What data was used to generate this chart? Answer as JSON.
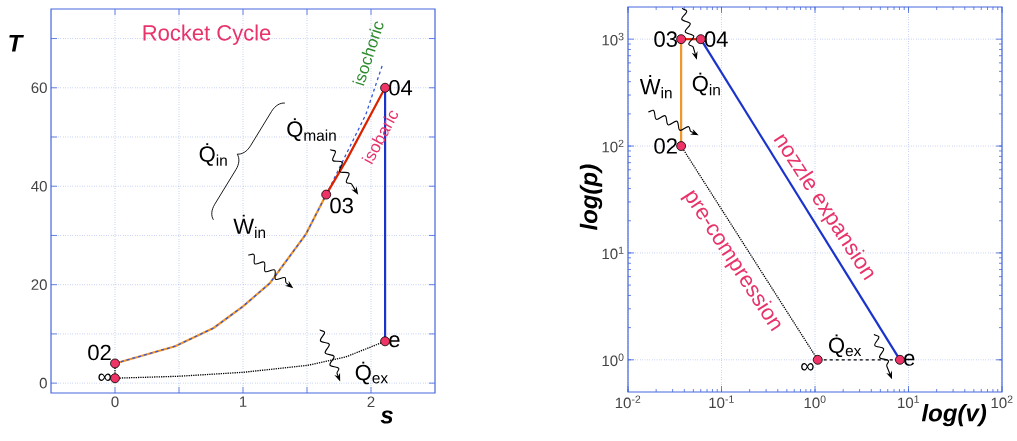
{
  "chart_data": [
    {
      "type": "line",
      "title": "Rocket Cycle",
      "xlabel": "s",
      "ylabel": "T",
      "xlim": [
        -0.5,
        2.5
      ],
      "ylim": [
        -2,
        76
      ],
      "xticks": [
        0,
        {
          "value": 0.5,
          "label": null
        },
        1,
        {
          "value": 1.5,
          "label": null
        },
        2
      ],
      "yticks": [
        0,
        {
          "value": 10,
          "label": null
        },
        20,
        {
          "value": 30,
          "label": null
        },
        40,
        {
          "value": 50,
          "label": null
        },
        60,
        {
          "value": 70,
          "label": null
        }
      ],
      "grid": true,
      "series": [
        {
          "color": "#f0962e",
          "x": [
            0,
            0.47,
            0.77,
            1.0,
            1.21,
            1.49,
            1.65
          ],
          "values": [
            4,
            7.5,
            11.2,
            15.6,
            20.3,
            30.2,
            38.3
          ]
        },
        {
          "color": "#3355dd",
          "line_style": "dashed",
          "x": [
            0,
            0.47,
            0.77,
            1.0,
            1.21,
            1.49,
            1.65,
            1.96,
            2.09
          ],
          "values": [
            4,
            7.5,
            11.2,
            15.6,
            20.3,
            30.2,
            38.3,
            54.6,
            64.7
          ]
        },
        {
          "color": "#dd2200",
          "x": [
            1.65,
            1.81,
            2.11
          ],
          "values": [
            38.3,
            45.4,
            60
          ]
        },
        {
          "color": "#1a33cc",
          "x": [
            2.11,
            2.11
          ],
          "values": [
            60,
            8.5
          ]
        },
        {
          "color": "#000000",
          "line_style": "dotted",
          "x": [
            0,
            0.5,
            1,
            1.5,
            1.8,
            2.11
          ],
          "values": [
            1,
            1.4,
            2.2,
            3.6,
            5.3,
            8.5
          ]
        },
        {
          "color": "#000000",
          "line_style": "dotted",
          "x": [
            0,
            0
          ],
          "values": [
            1,
            4
          ]
        },
        {
          "type": "scatter",
          "marker": "circle",
          "color": "#ee3366",
          "x": [
            0,
            0,
            1.65,
            2.11,
            2.11
          ],
          "values": [
            4,
            1,
            38.3,
            60,
            8.5
          ]
        }
      ],
      "annotations": [
        {
          "text": "02",
          "x": 0,
          "y": 4
        },
        {
          "text": "∞",
          "x": 0,
          "y": 1
        },
        {
          "text": "03",
          "x": 1.65,
          "y": 38.3
        },
        {
          "text": "04",
          "x": 2.11,
          "y": 60
        },
        {
          "text": "e",
          "x": 2.11,
          "y": 8.5
        },
        "isochoric",
        "isobaric",
        "Q̇$_{main}$",
        "Q̇$_{in}$",
        "Ẇ$_{in}$",
        "Q̇$_{ex}$"
      ]
    },
    {
      "type": "line",
      "xlabel": "log(v)",
      "ylabel": "log(p)",
      "log": "xy",
      "xlim": [
        0.01,
        100
      ],
      "ylim": [
        0.5,
        2000
      ],
      "xticks": [
        {
          "value": 0.01,
          "label": "10$^{-2}$"
        },
        {
          "value": 0.1,
          "label": "10$^{-1}$"
        },
        {
          "value": 1,
          "label": "10$^{0}$"
        },
        {
          "value": 10,
          "label": "10$^{1}$"
        },
        {
          "value": 100,
          "label": "10$^{2}$"
        }
      ],
      "yticks": [
        {
          "value": 1,
          "label": "10$^{0}$"
        },
        {
          "value": 10,
          "label": "10$^{1}$"
        },
        {
          "value": 100,
          "label": "10$^{2}$"
        },
        {
          "value": 1000,
          "label": "10$^{3}$"
        }
      ],
      "grid": true,
      "series": [
        {
          "color": "#f0962e",
          "x": [
            0.037,
            0.037
          ],
          "values": [
            1000,
            100
          ]
        },
        {
          "color": "#dd2200",
          "x": [
            0.037,
            0.06
          ],
          "values": [
            1000,
            1000
          ]
        },
        {
          "color": "#1a33cc",
          "x": [
            0.06,
            8.1
          ],
          "values": [
            1000,
            1
          ]
        },
        {
          "color": "#000000",
          "line_style": "dotted",
          "x": [
            0.037,
            1.07
          ],
          "values": [
            100,
            1
          ]
        },
        {
          "color": "#000000",
          "line_style": "dashed",
          "x": [
            1.07,
            8.1
          ],
          "values": [
            1,
            1
          ]
        },
        {
          "type": "scatter",
          "marker": "circle",
          "color": "#ee3366",
          "x": [
            0.037,
            0.06,
            0.037,
            1.07,
            8.1
          ],
          "values": [
            1000,
            1000,
            100,
            1,
            1
          ]
        }
      ],
      "annotations": [
        {
          "text": "03",
          "x": 0.037,
          "y": 1000
        },
        {
          "text": "04",
          "x": 0.06,
          "y": 1000
        },
        {
          "text": "02",
          "x": 0.037,
          "y": 100
        },
        {
          "text": "∞",
          "x": 1.07,
          "y": 1
        },
        {
          "text": "e",
          "x": 8.1,
          "y": 1
        },
        "Ẇ$_{in}$",
        "Q̇$_{in}$",
        "Q̇$_{ex}$",
        "nozzle expansion",
        "pre-compression"
      ]
    }
  ]
}
